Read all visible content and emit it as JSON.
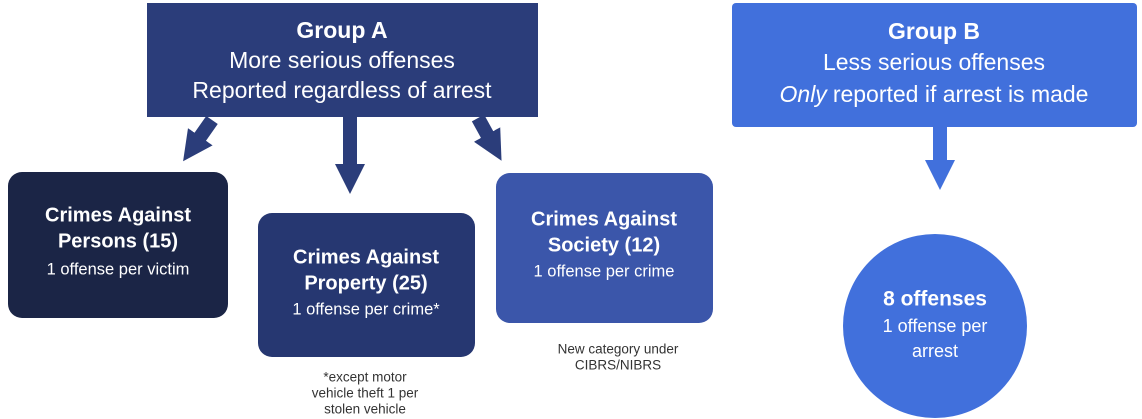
{
  "group_a": {
    "title": "Group A",
    "lines": [
      "More serious offenses",
      "Reported regardless of arrest"
    ]
  },
  "group_b": {
    "title": "Group B",
    "line1": "Less serious offenses",
    "line2_emphasis": "Only",
    "line2_rest": "reported if arrest is made"
  },
  "categories": [
    {
      "title_lines": [
        "Crimes Against",
        "Persons (15)"
      ],
      "description": "1 offense per victim"
    },
    {
      "title_lines": [
        "Crimes Against",
        "Property (25)"
      ],
      "description": "1 offense per crime*",
      "note_lines": [
        "*except motor",
        "vehicle theft 1 per",
        "stolen vehicle"
      ]
    },
    {
      "title_lines": [
        "Crimes Against",
        "Society (12)"
      ],
      "description": "1 offense per crime",
      "note_lines": [
        "New category under",
        "CIBRS/NIBRS"
      ]
    }
  ],
  "group_b_offenses": {
    "title": "8 offenses",
    "lines": [
      "1 offense per",
      "arrest"
    ]
  }
}
